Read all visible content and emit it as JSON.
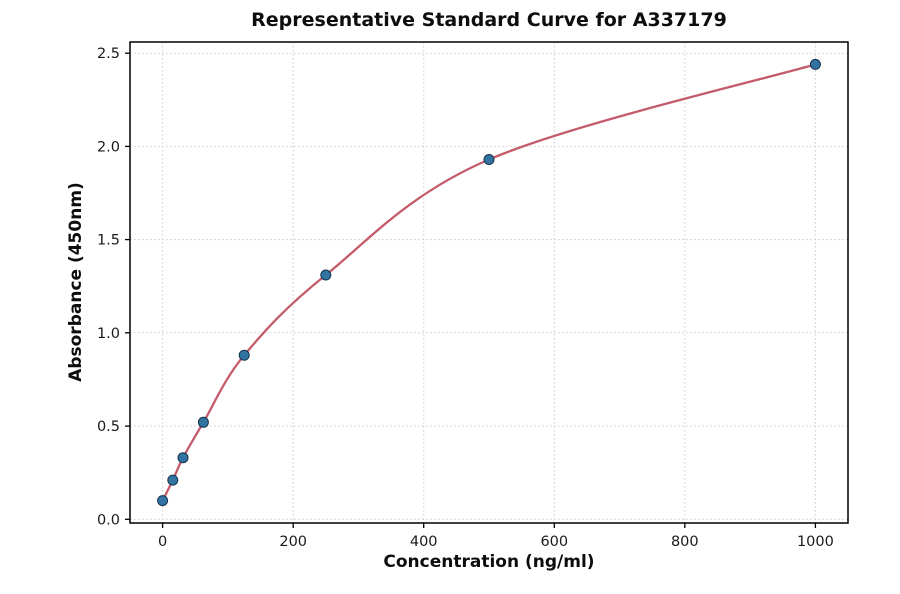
{
  "chart_data": {
    "type": "scatter",
    "title": "Representative Standard Curve for A337179",
    "xlabel": "Concentration (ng/ml)",
    "ylabel": "Absorbance (450nm)",
    "x": [
      0,
      15.6,
      31.2,
      62.5,
      125,
      250,
      500,
      1000
    ],
    "y": [
      0.1,
      0.21,
      0.33,
      0.52,
      0.88,
      1.31,
      1.93,
      2.44
    ],
    "series": [
      {
        "name": "standard data points",
        "kind": "scatter"
      },
      {
        "name": "fitted standard curve",
        "kind": "smooth-line"
      }
    ],
    "xlim": [
      -50,
      1050
    ],
    "ylim": [
      -0.02,
      2.56
    ],
    "x_ticks": [
      0,
      200,
      400,
      600,
      800,
      1000
    ],
    "x_tick_labels": [
      "0",
      "200",
      "400",
      "600",
      "800",
      "1000"
    ],
    "y_ticks": [
      0.0,
      0.5,
      1.0,
      1.5,
      2.0,
      2.5
    ],
    "y_tick_labels": [
      "0.0",
      "0.5",
      "1.0",
      "1.5",
      "2.0",
      "2.5"
    ],
    "grid": true,
    "legend": "none",
    "colors": {
      "curve": "#c45b6b",
      "point_fill": "#3274a1",
      "point_edge": "#17344f",
      "grid": "#cccccc",
      "spine": "#000000",
      "background": "#ffffff"
    }
  }
}
